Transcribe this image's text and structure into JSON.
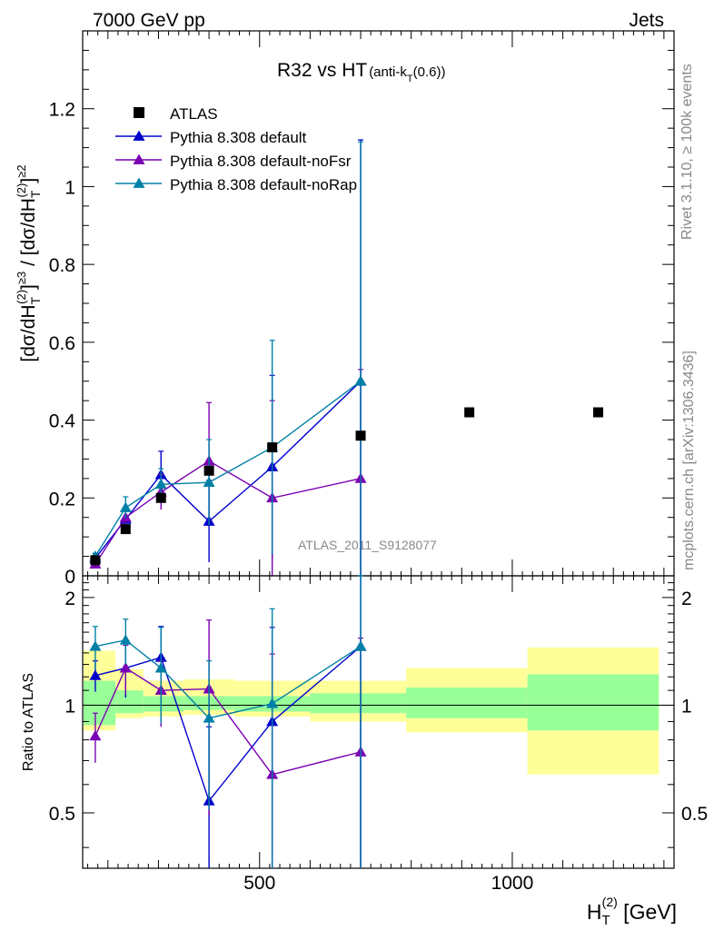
{
  "header": {
    "left": "7000 GeV pp",
    "right": "Jets"
  },
  "side": {
    "rivet": "Rivet 3.1.10, ≥ 100k events",
    "mcplots": "mcplots.cern.ch [arXiv:1306.3436]"
  },
  "watermark": "ATLAS_2011_S9128077",
  "colors": {
    "atlas": "#000000",
    "default": "#0000cc",
    "noFsr": "#7a00b3",
    "noRap": "#0080a6",
    "band_inner": "#99ff99",
    "band_outer": "#ffff99"
  },
  "chart_data": [
    {
      "type": "scatter",
      "title_main": "R32 vs HT",
      "title_sub": "(anti-k",
      "title_sub_sub": "T",
      "title_sub_end": "(0.6))",
      "ylabel": "[dσ/dH_T^(2)]^≥3 / [dσ/dH_T^(2)]^≥2",
      "ylabel_parts": {
        "a": "[dσ/dH",
        "a_sub": "T",
        "a_sup": "(2)",
        "b": "]",
        "b_sup": "≥3",
        "c": " / [dσ/dH",
        "c_sub": "T",
        "c_sup": "(2)",
        "d": "]",
        "d_sup": "≥2"
      },
      "xlim": [
        150,
        1320
      ],
      "ylim": [
        0,
        1.4
      ],
      "yticks": [
        0,
        0.2,
        0.4,
        0.6,
        0.8,
        1,
        1.2
      ],
      "ytick_labels": [
        "0",
        "0.2",
        "0.4",
        "0.6",
        "0.8",
        "1",
        "1.2"
      ],
      "legend_position": "top-left",
      "data": {
        "name": "ATLAS",
        "x": [
          175,
          235,
          305,
          400,
          525,
          700,
          915,
          1170
        ],
        "y": [
          0.04,
          0.12,
          0.2,
          0.27,
          0.33,
          0.36,
          0.42,
          0.42
        ]
      },
      "series": [
        {
          "name": "Pythia 8.308 default",
          "color": "#0000cc",
          "marker": "triangle",
          "x": [
            175,
            235,
            305,
            400,
            525,
            700
          ],
          "y": [
            0.045,
            0.145,
            0.26,
            0.14,
            0.28,
            0.5
          ],
          "err": [
            0.012,
            0.025,
            0.06,
            0.105,
            0.235,
            0.62
          ]
        },
        {
          "name": "Pythia 8.308 default-noFsr",
          "color": "#7a00b3",
          "marker": "triangle",
          "x": [
            175,
            235,
            305,
            400,
            525,
            700
          ],
          "y": [
            0.03,
            0.15,
            0.215,
            0.295,
            0.2,
            0.25
          ],
          "err": [
            0.008,
            0.02,
            0.045,
            0.15,
            0.25,
            0.28
          ]
        },
        {
          "name": "Pythia 8.308 default-noRap",
          "color": "#0080a6",
          "marker": "triangle",
          "x": [
            175,
            235,
            305,
            400,
            525,
            700
          ],
          "y": [
            0.05,
            0.175,
            0.235,
            0.24,
            0.33,
            0.5
          ],
          "err": [
            0.008,
            0.028,
            0.04,
            0.11,
            0.275,
            0.615
          ]
        }
      ]
    },
    {
      "type": "scatter",
      "ylabel": "Ratio to ATLAS",
      "xlabel_main": "H",
      "xlabel_sub": "T",
      "xlabel_sup": "(2)",
      "xlabel_unit": " [GeV]",
      "xlim": [
        150,
        1320
      ],
      "ylim": [
        0.35,
        2.3
      ],
      "log_y": true,
      "yticks": [
        0.5,
        1,
        2
      ],
      "ytick_labels": [
        "0.5",
        "1",
        "2"
      ],
      "xticks": [
        500,
        1000
      ],
      "xtick_labels": [
        "500",
        "1000"
      ],
      "bands": [
        {
          "x0": 150,
          "x1": 215,
          "inner": [
            0.88,
            1.17
          ],
          "outer": [
            0.85,
            1.42
          ]
        },
        {
          "x0": 215,
          "x1": 270,
          "inner": [
            0.95,
            1.1
          ],
          "outer": [
            0.92,
            1.26
          ]
        },
        {
          "x0": 270,
          "x1": 350,
          "inner": [
            0.96,
            1.06
          ],
          "outer": [
            0.93,
            1.17
          ]
        },
        {
          "x0": 350,
          "x1": 450,
          "inner": [
            0.97,
            1.06
          ],
          "outer": [
            0.94,
            1.18
          ]
        },
        {
          "x0": 450,
          "x1": 600,
          "inner": [
            0.96,
            1.06
          ],
          "outer": [
            0.93,
            1.17
          ]
        },
        {
          "x0": 600,
          "x1": 790,
          "inner": [
            0.95,
            1.08
          ],
          "outer": [
            0.9,
            1.17
          ]
        },
        {
          "x0": 790,
          "x1": 1030,
          "inner": [
            0.92,
            1.12
          ],
          "outer": [
            0.84,
            1.27
          ]
        },
        {
          "x0": 1030,
          "x1": 1290,
          "inner": [
            0.85,
            1.22
          ],
          "outer": [
            0.64,
            1.45
          ]
        }
      ],
      "series": [
        {
          "name": "Pythia 8.308 default",
          "color": "#0000cc",
          "x": [
            175,
            235,
            305,
            400,
            525,
            700
          ],
          "y": [
            1.21,
            1.27,
            1.36,
            0.54,
            0.9,
            1.46
          ],
          "err": [
            0.12,
            0.22,
            0.3,
            0.33,
            0.75,
            1.5
          ]
        },
        {
          "name": "Pythia 8.308 default-noFsr",
          "color": "#7a00b3",
          "x": [
            175,
            235,
            305,
            400,
            525,
            700
          ],
          "y": [
            0.82,
            1.27,
            1.1,
            1.11,
            0.64,
            0.74
          ],
          "err": [
            0.13,
            0.2,
            0.23,
            0.62,
            0.75,
            0.8
          ]
        },
        {
          "name": "Pythia 8.308 default-noRap",
          "color": "#0080a6",
          "x": [
            175,
            235,
            305,
            400,
            525,
            700
          ],
          "y": [
            1.46,
            1.52,
            1.27,
            0.92,
            1.01,
            1.46
          ],
          "err": [
            0.2,
            0.22,
            0.38,
            0.41,
            0.85,
            1.5
          ]
        }
      ]
    }
  ]
}
